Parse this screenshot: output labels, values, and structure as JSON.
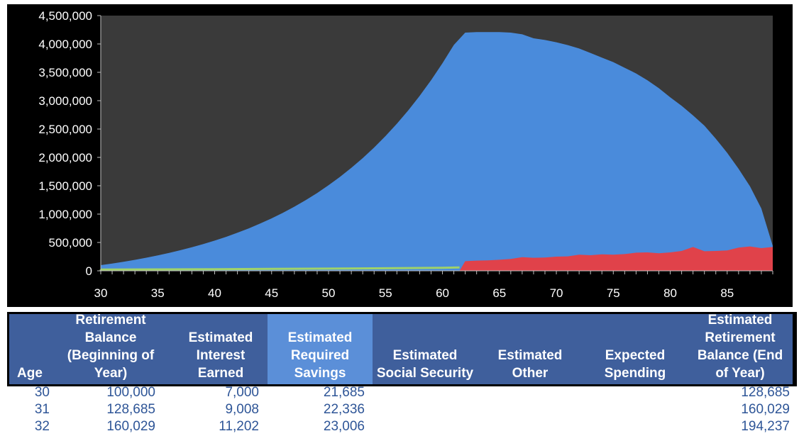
{
  "chart_data": {
    "type": "area",
    "xlim": [
      30,
      89
    ],
    "ylim": [
      0,
      4500000
    ],
    "x_ticks": [
      "30",
      "35",
      "40",
      "45",
      "50",
      "55",
      "60",
      "65",
      "70",
      "75",
      "80",
      "85"
    ],
    "y_ticks": [
      "0",
      "500,000",
      "1,000,000",
      "1,500,000",
      "2,000,000",
      "2,500,000",
      "3,000,000",
      "3,500,000",
      "4,000,000",
      "4,500,000"
    ],
    "colors": {
      "background": "#3a3a3a",
      "balance": "#4a8de0",
      "savings": "#9fd26a",
      "spending": "#e0424a",
      "axis": "#bfbfbf"
    },
    "series": [
      {
        "key": "balance",
        "x": [
          30,
          31,
          32,
          33,
          34,
          35,
          36,
          37,
          38,
          39,
          40,
          41,
          42,
          43,
          44,
          45,
          46,
          47,
          48,
          49,
          50,
          51,
          52,
          53,
          54,
          55,
          56,
          57,
          58,
          59,
          60,
          61,
          62,
          63,
          64,
          65,
          66,
          67,
          68,
          69,
          70,
          71,
          72,
          73,
          74,
          75,
          76,
          77,
          78,
          79,
          80,
          81,
          82,
          83,
          84,
          85,
          86,
          87,
          88,
          89
        ],
        "values": [
          100000,
          128685,
          160029,
          194237,
          231500,
          272000,
          316000,
          364000,
          416000,
          472000,
          533000,
          599000,
          671000,
          749000,
          834000,
          925000,
          1024000,
          1131000,
          1247000,
          1373000,
          1509000,
          1656000,
          1815000,
          1987000,
          2174000,
          2376000,
          2594000,
          2830000,
          3085000,
          3361000,
          3660000,
          3983000,
          4200000,
          4210000,
          4210000,
          4210000,
          4200000,
          4170000,
          4100000,
          4070000,
          4030000,
          3980000,
          3920000,
          3840000,
          3760000,
          3680000,
          3580000,
          3480000,
          3360000,
          3220000,
          3060000,
          2910000,
          2740000,
          2560000,
          2330000,
          2080000,
          1800000,
          1490000,
          1100000,
          440000
        ]
      },
      {
        "key": "savings",
        "x": [
          30,
          35,
          40,
          45,
          50,
          55,
          60,
          61.5
        ],
        "values": [
          21685,
          25100,
          29100,
          33700,
          39100,
          45300,
          52500,
          60000
        ]
      },
      {
        "key": "spending",
        "x": [
          61.5,
          62,
          63,
          64,
          65,
          66,
          67,
          68,
          69,
          70,
          71,
          72,
          73,
          74,
          75,
          76,
          77,
          78,
          79,
          80,
          81,
          82,
          83,
          84,
          85,
          86,
          87,
          88,
          89
        ],
        "values": [
          0,
          170000,
          180000,
          185000,
          195000,
          210000,
          240000,
          230000,
          235000,
          250000,
          255000,
          285000,
          275000,
          290000,
          285000,
          295000,
          320000,
          325000,
          310000,
          325000,
          350000,
          420000,
          345000,
          350000,
          360000,
          410000,
          430000,
          400000,
          420000
        ]
      }
    ]
  },
  "table": {
    "headers": [
      {
        "lines": [
          "Age"
        ]
      },
      {
        "lines": [
          "Retirement",
          "Balance",
          "(Beginning of",
          "Year)"
        ]
      },
      {
        "lines": [
          "Estimated",
          "Interest",
          "Earned"
        ]
      },
      {
        "lines": [
          "Estimated",
          "Required",
          "Savings"
        ]
      },
      {
        "lines": [
          "Estimated",
          "Social Security"
        ]
      },
      {
        "lines": [
          "Estimated",
          "Other"
        ]
      },
      {
        "lines": [
          "Expected",
          "Spending"
        ]
      },
      {
        "lines": [
          "Estimated",
          "Retirement",
          "Balance (End",
          "of Year)"
        ]
      }
    ],
    "rows": [
      {
        "age": "30",
        "begin": "100,000",
        "interest": "7,000",
        "savings": "21,685",
        "end": "128,685"
      },
      {
        "age": "31",
        "begin": "128,685",
        "interest": "9,008",
        "savings": "22,336",
        "end": "160,029"
      },
      {
        "age": "32",
        "begin": "160,029",
        "interest": "11,202",
        "savings": "23,006",
        "end": "194,237"
      }
    ]
  }
}
